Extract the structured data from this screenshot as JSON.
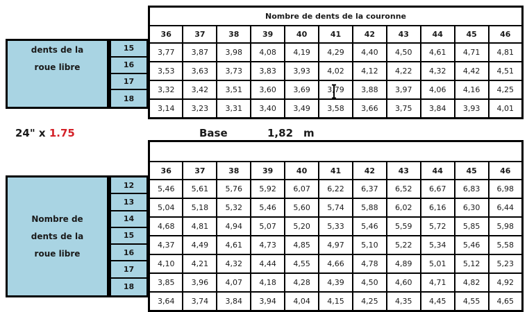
{
  "colors": {
    "table_header_bg": "#A9D4E3",
    "highlight_cyan": "#29A8DF",
    "highlight_purple": "#7731A8",
    "accent_red": "#D42229"
  },
  "heading": {
    "wheel_size": "24\" x",
    "tire_width": "1.75",
    "base_label": "Base",
    "base_value": "1,82",
    "base_unit": "m"
  },
  "icons": {
    "text_cursor": "I-beam text cursor"
  },
  "top_table": {
    "band_label": "Nombre de dents de la couronne",
    "columns": [
      "36",
      "37",
      "38",
      "39",
      "40",
      "41",
      "42",
      "43",
      "44",
      "45",
      "46"
    ],
    "side_label_lines": [
      "dents de la",
      "roue libre"
    ],
    "rows": [
      {
        "label": "15",
        "values": [
          "3,77",
          "3,87",
          "3,98",
          "4,08",
          "4,19",
          "4,29",
          "4,40",
          "4,50",
          "4,61",
          "4,71",
          "4,81"
        ],
        "highlights": [
          "",
          "",
          "",
          "",
          "purple",
          "purple",
          "",
          "",
          "",
          "",
          ""
        ]
      },
      {
        "label": "16",
        "values": [
          "3,53",
          "3,63",
          "3,73",
          "3,83",
          "3,93",
          "4,02",
          "4,12",
          "4,22",
          "4,32",
          "4,42",
          "4,51"
        ],
        "highlights": [
          "",
          "",
          "",
          "cyan",
          "cyan",
          "cyan",
          "purple",
          "purple",
          "",
          "",
          ""
        ]
      },
      {
        "label": "17",
        "values": [
          "3,32",
          "3,42",
          "3,51",
          "3,60",
          "3,69",
          "3,79",
          "3,88",
          "3,97",
          "4,06",
          "4,16",
          "4,25"
        ],
        "highlights": [
          "",
          "",
          "",
          "",
          "",
          "cyan",
          "cyan",
          "cyan",
          "purple",
          "purple",
          "purple"
        ]
      },
      {
        "label": "18",
        "values": [
          "3,14",
          "3,23",
          "3,31",
          "3,40",
          "3,49",
          "3,58",
          "3,66",
          "3,75",
          "3,84",
          "3,93",
          "4,01"
        ],
        "highlights": [
          "",
          "",
          "",
          "",
          "",
          "",
          "",
          "",
          "",
          "",
          ""
        ]
      }
    ]
  },
  "bottom_table": {
    "band_label": "",
    "columns": [
      "36",
      "37",
      "38",
      "39",
      "40",
      "41",
      "42",
      "43",
      "44",
      "45",
      "46"
    ],
    "side_label_lines": [
      "Nombre de",
      "dents de la",
      "roue libre"
    ],
    "rows": [
      {
        "label": "12",
        "values": [
          "5,46",
          "5,61",
          "5,76",
          "5,92",
          "6,07",
          "6,22",
          "6,37",
          "6,52",
          "6,67",
          "6,83",
          "6,98"
        ],
        "highlights": [
          "",
          "",
          "",
          "",
          "",
          "",
          "",
          "",
          "",
          "",
          ""
        ]
      },
      {
        "label": "13",
        "values": [
          "5,04",
          "5,18",
          "5,32",
          "5,46",
          "5,60",
          "5,74",
          "5,88",
          "6,02",
          "6,16",
          "6,30",
          "6,44"
        ],
        "highlights": [
          "",
          "",
          "",
          "",
          "",
          "",
          "",
          "",
          "",
          "",
          ""
        ]
      },
      {
        "label": "14",
        "values": [
          "4,68",
          "4,81",
          "4,94",
          "5,07",
          "5,20",
          "5,33",
          "5,46",
          "5,59",
          "5,72",
          "5,85",
          "5,98"
        ],
        "highlights": [
          "",
          "",
          "",
          "",
          "",
          "",
          "",
          "",
          "",
          "",
          ""
        ]
      },
      {
        "label": "15",
        "values": [
          "4,37",
          "4,49",
          "4,61",
          "4,73",
          "4,85",
          "4,97",
          "5,10",
          "5,22",
          "5,34",
          "5,46",
          "5,58"
        ],
        "highlights": [
          "",
          "",
          "",
          "",
          "",
          "",
          "",
          "",
          "",
          "",
          ""
        ]
      },
      {
        "label": "16",
        "values": [
          "4,10",
          "4,21",
          "4,32",
          "4,44",
          "4,55",
          "4,66",
          "4,78",
          "4,89",
          "5,01",
          "5,12",
          "5,23"
        ],
        "highlights": [
          "",
          "purple",
          "purple",
          "purple",
          "",
          "",
          "",
          "",
          "",
          "",
          ""
        ]
      },
      {
        "label": "17",
        "values": [
          "3,85",
          "3,96",
          "4,07",
          "4,18",
          "4,28",
          "4,39",
          "4,50",
          "4,60",
          "4,71",
          "4,82",
          "4,92"
        ],
        "highlights": [
          "",
          "cyan",
          "cyan",
          "cyan",
          "purple",
          "purple",
          "",
          "",
          "",
          "",
          ""
        ]
      },
      {
        "label": "18",
        "values": [
          "3,64",
          "3,74",
          "3,84",
          "3,94",
          "4,04",
          "4,15",
          "4,25",
          "4,35",
          "4,45",
          "4,55",
          "4,65"
        ],
        "highlights": [
          "",
          "",
          "",
          "cyan",
          "cyan",
          "cyan",
          "",
          "",
          "",
          "",
          ""
        ]
      }
    ]
  }
}
